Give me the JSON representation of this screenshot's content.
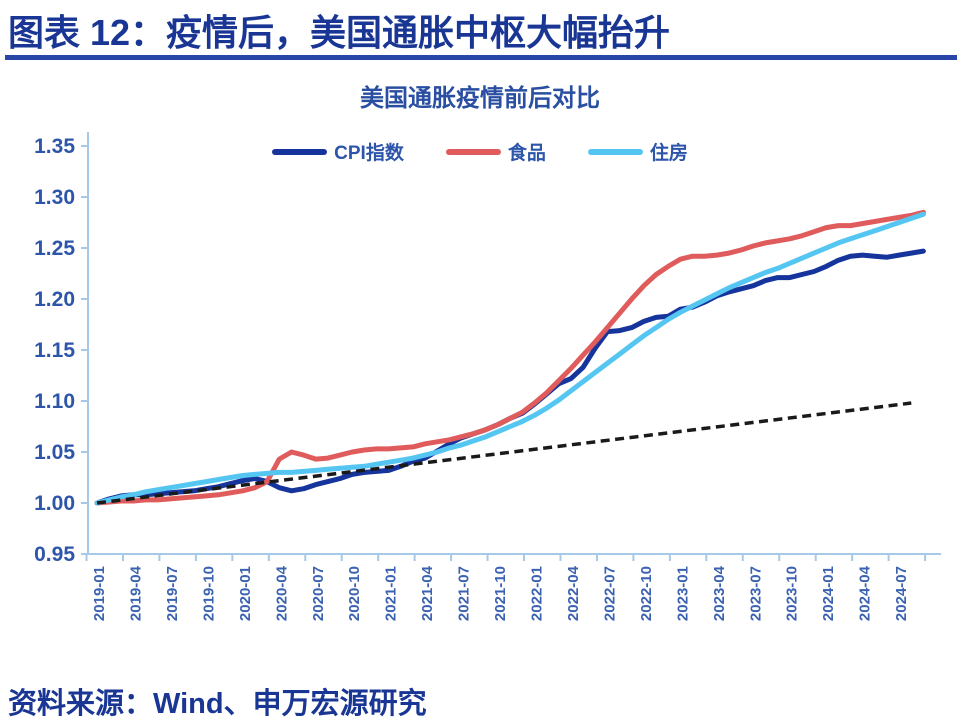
{
  "page": {
    "header": "图表 12：疫情后，美国通胀中枢大幅抬升",
    "source": "资料来源：Wind、申万宏源研究"
  },
  "colors": {
    "header_text": "#1a3694",
    "header_underline": "#2746a8",
    "chart_title_text": "#2a4fa2",
    "axis_line": "#a6c9e8",
    "axis_label_text": "#3b62b0",
    "y_label_text": "#2d55a9",
    "cpi_line": "#15349c",
    "food_line": "#e05c5c",
    "housing_line": "#55c6f2",
    "trend_line": "#1a1a1a"
  },
  "chart_data": {
    "type": "line",
    "title": "美国通胀疫情前后对比",
    "xlabel": "",
    "ylabel": "",
    "ylim": [
      0.95,
      1.35
    ],
    "y_ticks": [
      0.95,
      1.0,
      1.05,
      1.1,
      1.15,
      1.2,
      1.25,
      1.3,
      1.35
    ],
    "grid": false,
    "legend_position": "top-center",
    "x_start": "2019-01",
    "x_end": "2024-09",
    "x_frequency": "monthly",
    "x_tick_labels": [
      "2019-01",
      "2019-04",
      "2019-07",
      "2019-10",
      "2020-01",
      "2020-04",
      "2020-07",
      "2020-10",
      "2021-01",
      "2021-04",
      "2021-07",
      "2021-10",
      "2022-01",
      "2022-04",
      "2022-07",
      "2022-10",
      "2023-01",
      "2023-04",
      "2023-07",
      "2023-10",
      "2024-01",
      "2024-04",
      "2024-07"
    ],
    "normalization": "index, 2019-01 = 1.00",
    "series": [
      {
        "name": "CPI指数",
        "slug": "cpi",
        "color": "#15349c",
        "values": [
          1.0,
          1.004,
          1.007,
          1.008,
          1.008,
          1.009,
          1.01,
          1.011,
          1.012,
          1.014,
          1.016,
          1.019,
          1.022,
          1.024,
          1.021,
          1.015,
          1.012,
          1.014,
          1.018,
          1.021,
          1.024,
          1.028,
          1.03,
          1.031,
          1.032,
          1.036,
          1.041,
          1.044,
          1.051,
          1.058,
          1.064,
          1.068,
          1.072,
          1.077,
          1.083,
          1.088,
          1.097,
          1.107,
          1.117,
          1.122,
          1.133,
          1.152,
          1.168,
          1.169,
          1.172,
          1.178,
          1.182,
          1.183,
          1.19,
          1.192,
          1.197,
          1.203,
          1.207,
          1.21,
          1.213,
          1.218,
          1.221,
          1.221,
          1.224,
          1.227,
          1.232,
          1.238,
          1.242,
          1.243,
          1.242,
          1.241,
          1.243,
          1.245,
          1.247
        ]
      },
      {
        "name": "食品",
        "slug": "food",
        "color": "#e05c5c",
        "values": [
          1.0,
          1.001,
          1.002,
          1.002,
          1.003,
          1.003,
          1.004,
          1.005,
          1.006,
          1.007,
          1.008,
          1.01,
          1.012,
          1.015,
          1.021,
          1.043,
          1.05,
          1.047,
          1.043,
          1.044,
          1.047,
          1.05,
          1.052,
          1.053,
          1.053,
          1.054,
          1.055,
          1.058,
          1.06,
          1.062,
          1.065,
          1.068,
          1.072,
          1.077,
          1.083,
          1.089,
          1.098,
          1.108,
          1.12,
          1.132,
          1.145,
          1.158,
          1.172,
          1.186,
          1.2,
          1.213,
          1.224,
          1.232,
          1.239,
          1.242,
          1.242,
          1.243,
          1.245,
          1.248,
          1.252,
          1.255,
          1.257,
          1.259,
          1.262,
          1.266,
          1.27,
          1.272,
          1.272,
          1.274,
          1.276,
          1.278,
          1.28,
          1.282,
          1.285
        ]
      },
      {
        "name": "住房",
        "slug": "housing",
        "color": "#55c6f2",
        "values": [
          1.0,
          1.003,
          1.006,
          1.008,
          1.011,
          1.013,
          1.015,
          1.017,
          1.019,
          1.021,
          1.023,
          1.025,
          1.027,
          1.028,
          1.029,
          1.03,
          1.03,
          1.031,
          1.032,
          1.033,
          1.034,
          1.035,
          1.036,
          1.038,
          1.04,
          1.042,
          1.044,
          1.047,
          1.05,
          1.054,
          1.057,
          1.061,
          1.065,
          1.07,
          1.075,
          1.08,
          1.086,
          1.093,
          1.101,
          1.11,
          1.119,
          1.128,
          1.137,
          1.146,
          1.155,
          1.164,
          1.172,
          1.18,
          1.187,
          1.193,
          1.199,
          1.205,
          1.211,
          1.216,
          1.221,
          1.226,
          1.23,
          1.235,
          1.24,
          1.245,
          1.25,
          1.255,
          1.259,
          1.263,
          1.267,
          1.271,
          1.275,
          1.279,
          1.283
        ]
      }
    ],
    "trend_line": {
      "slug": "pre-pandemic-trend",
      "style": "dashed",
      "color": "#1a1a1a",
      "start_month_index": 0,
      "start_value": 1.0,
      "end_month_index": 67,
      "end_value": 1.098
    }
  }
}
